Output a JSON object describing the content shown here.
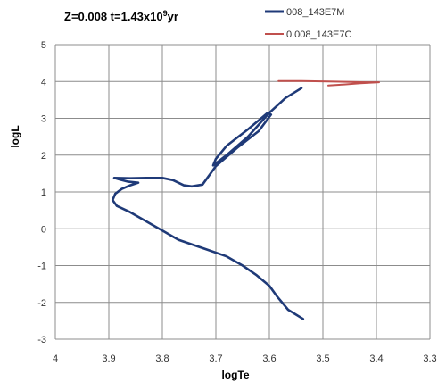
{
  "chart_data": {
    "type": "line",
    "title_prefix": "Z=0.008  t=1.43x10",
    "title_exp": "9",
    "title_suffix": "yr",
    "xlabel": "logTe",
    "ylabel": "logL",
    "xlim": [
      4,
      3.3
    ],
    "ylim": [
      -3,
      5
    ],
    "x_reversed": true,
    "x_ticks": [
      "4",
      "3.9",
      "3.8",
      "3.7",
      "3.6",
      "3.5",
      "3.4",
      "3.3"
    ],
    "y_ticks": [
      "-3",
      "-2",
      "-1",
      "0",
      "1",
      "2",
      "3",
      "4",
      "5"
    ],
    "grid": true,
    "legend_position": "top-right",
    "series": [
      {
        "name": "008_143E7M",
        "color": "#1f3a78",
        "points": [
          [
            3.537,
            -2.45
          ],
          [
            3.565,
            -2.2
          ],
          [
            3.585,
            -1.85
          ],
          [
            3.6,
            -1.55
          ],
          [
            3.625,
            -1.25
          ],
          [
            3.65,
            -1.0
          ],
          [
            3.68,
            -0.75
          ],
          [
            3.72,
            -0.55
          ],
          [
            3.77,
            -0.3
          ],
          [
            3.8,
            -0.05
          ],
          [
            3.83,
            0.2
          ],
          [
            3.86,
            0.45
          ],
          [
            3.885,
            0.62
          ],
          [
            3.893,
            0.78
          ],
          [
            3.888,
            0.95
          ],
          [
            3.876,
            1.08
          ],
          [
            3.86,
            1.18
          ],
          [
            3.845,
            1.25
          ],
          [
            3.865,
            1.28
          ],
          [
            3.878,
            1.33
          ],
          [
            3.89,
            1.38
          ],
          [
            3.86,
            1.37
          ],
          [
            3.83,
            1.38
          ],
          [
            3.8,
            1.38
          ],
          [
            3.78,
            1.32
          ],
          [
            3.76,
            1.18
          ],
          [
            3.745,
            1.15
          ],
          [
            3.725,
            1.2
          ],
          [
            3.7,
            1.7
          ],
          [
            3.66,
            2.2
          ],
          [
            3.62,
            2.65
          ],
          [
            3.597,
            3.1
          ],
          [
            3.603,
            3.15
          ],
          [
            3.64,
            2.7
          ],
          [
            3.68,
            2.25
          ],
          [
            3.7,
            1.9
          ],
          [
            3.705,
            1.72
          ],
          [
            3.68,
            2.0
          ],
          [
            3.64,
            2.5
          ],
          [
            3.6,
            3.15
          ],
          [
            3.57,
            3.55
          ],
          [
            3.54,
            3.82
          ]
        ]
      },
      {
        "name": "0.008_143E7C",
        "color": "#c0504d",
        "points": [
          [
            3.583,
            4.01
          ],
          [
            3.54,
            4.01
          ],
          [
            3.49,
            4.0
          ],
          [
            3.45,
            3.99
          ],
          [
            3.42,
            3.98
          ],
          [
            3.395,
            3.98
          ],
          [
            3.43,
            3.95
          ],
          [
            3.46,
            3.92
          ],
          [
            3.49,
            3.89
          ]
        ]
      }
    ]
  }
}
